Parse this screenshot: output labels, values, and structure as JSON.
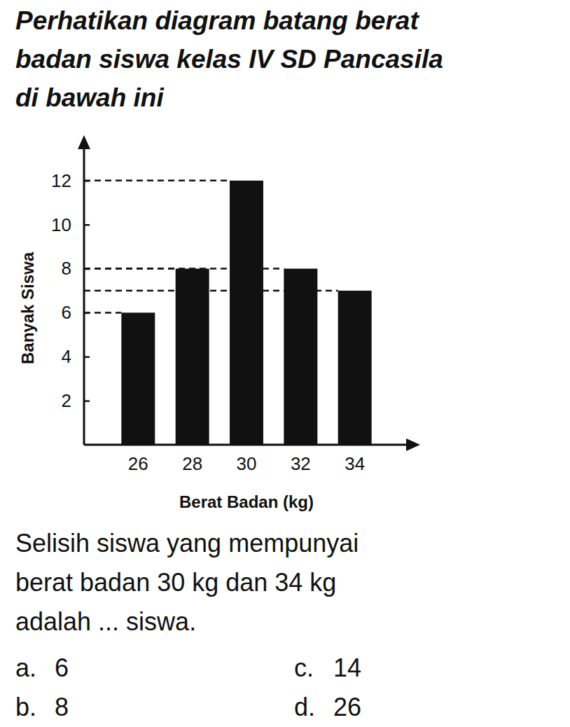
{
  "heading": [
    "Perhatikan diagram batang berat",
    "badan siswa kelas IV SD Pancasila",
    "di bawah ini"
  ],
  "chart_data": {
    "type": "bar",
    "x_label": "Berat Badan (kg)",
    "y_label": "Banyak Siswa",
    "categories": [
      "26",
      "28",
      "30",
      "32",
      "34"
    ],
    "values": [
      6,
      8,
      12,
      8,
      7
    ],
    "color": "#111111",
    "ylim": [
      0,
      14
    ],
    "yticks": [
      2,
      4,
      6,
      8,
      10,
      12
    ],
    "grid": false
  },
  "question": [
    "Selisih siswa yang mempunyai",
    "berat badan 30 kg dan 34 kg",
    "adalah ... siswa."
  ],
  "options": [
    {
      "letter": "a.",
      "text": "6"
    },
    {
      "letter": "b.",
      "text": "8"
    },
    {
      "letter": "c.",
      "text": "14"
    },
    {
      "letter": "d.",
      "text": "26"
    }
  ]
}
